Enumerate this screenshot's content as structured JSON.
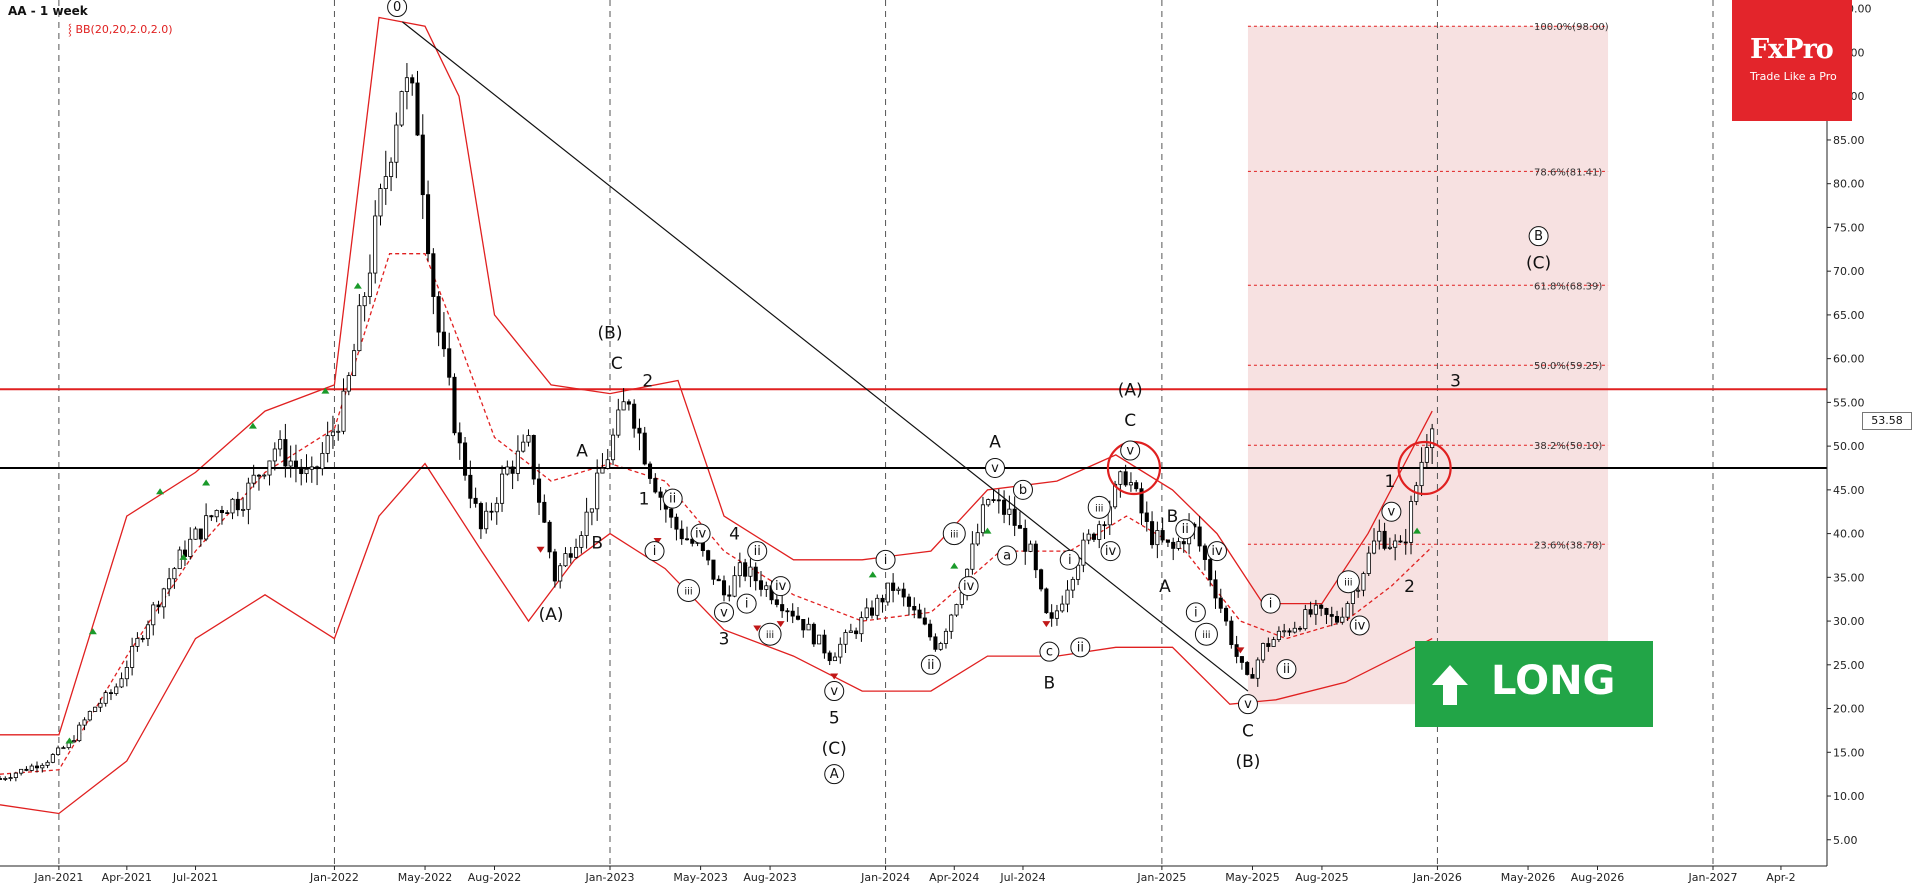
{
  "header": {
    "title": "AA - 1 week",
    "indicator": "BB(20,20,2.0,2.0)"
  },
  "brand": {
    "name": "FxPro",
    "tagline": "Trade Like a Pro"
  },
  "signal": {
    "label": "LONG",
    "direction": "up-arrow-icon"
  },
  "last_price": "53.58",
  "colors": {
    "candle_up": "#ffffff",
    "candle_down": "#000000",
    "bollinger": "#e02020",
    "resistance": "#e02020",
    "support": "#000000",
    "fib_zone": "#f6dcdc",
    "signal": "#22a547",
    "brand": "#e3252b"
  },
  "chart_data": {
    "type": "candlestick",
    "symbol": "AA",
    "timeframe": "1 week",
    "xlim": [
      "2020-10-15",
      "2027-06-01"
    ],
    "ylim": [
      2,
      101
    ],
    "y_ticks": [
      5,
      10,
      15,
      20,
      25,
      30,
      35,
      40,
      45,
      50,
      55,
      60,
      65,
      70,
      75,
      80,
      85,
      90,
      95,
      100
    ],
    "y_tick_labels": [
      "5.00",
      "10.00",
      "15.00",
      "20.00",
      "25.00",
      "30.00",
      "35.00",
      "40.00",
      "45.00",
      "50.00",
      "55.00",
      "60.00",
      "65.00",
      "70.00",
      "75.00",
      "80.00",
      "85.00",
      "90.00",
      "95.00",
      "100.00"
    ],
    "x_ticks": [
      "2021-01-01",
      "2021-04-01",
      "2021-07-01",
      "2022-01-01",
      "2022-05-01",
      "2022-08-01",
      "2023-01-01",
      "2023-05-01",
      "2023-08-01",
      "2024-01-01",
      "2024-04-01",
      "2024-07-01",
      "2025-01-01",
      "2025-05-01",
      "2025-08-01",
      "2026-01-01",
      "2026-05-01",
      "2026-08-01",
      "2027-01-01",
      "2027-04-01"
    ],
    "x_tick_labels": [
      "Jan-2021",
      "Apr-2021",
      "Jul-2021",
      "Jan-2022",
      "May-2022",
      "Aug-2022",
      "Jan-2023",
      "May-2023",
      "Aug-2023",
      "Jan-2024",
      "Apr-2024",
      "Jul-2024",
      "Jan-2025",
      "May-2025",
      "Aug-2025",
      "Jan-2026",
      "May-2026",
      "Aug-2026",
      "Jan-2027",
      "Apr-2"
    ],
    "vertical_gridlines": [
      "2021-01-01",
      "2022-01-01",
      "2023-01-01",
      "2024-01-01",
      "2025-01-01",
      "2026-01-01",
      "2027-01-01"
    ],
    "price_path": [
      [
        "2020-10-15",
        12.0
      ],
      [
        "2020-12-15",
        14.0
      ],
      [
        "2021-01-15",
        16.0
      ],
      [
        "2021-02-15",
        20.0
      ],
      [
        "2021-03-15",
        22.0
      ],
      [
        "2021-05-15",
        33.0
      ],
      [
        "2021-06-15",
        38.0
      ],
      [
        "2021-08-01",
        43.0
      ],
      [
        "2021-09-01",
        44.0
      ],
      [
        "2021-10-15",
        50.0
      ],
      [
        "2021-12-01",
        46.0
      ],
      [
        "2022-01-15",
        55.0
      ],
      [
        "2022-02-15",
        70.0
      ],
      [
        "2022-04-01",
        92.0
      ],
      [
        "2022-04-20",
        88.0
      ],
      [
        "2022-05-15",
        65.0
      ],
      [
        "2022-06-15",
        50.0
      ],
      [
        "2022-07-15",
        40.0
      ],
      [
        "2022-08-15",
        47.0
      ],
      [
        "2022-09-15",
        50.0
      ],
      [
        "2022-10-20",
        35.0
      ],
      [
        "2022-12-01",
        42.0
      ],
      [
        "2022-12-25",
        48.0
      ],
      [
        "2023-01-25",
        56.0
      ],
      [
        "2023-02-20",
        48.0
      ],
      [
        "2023-03-25",
        41.0
      ],
      [
        "2023-05-01",
        38.0
      ],
      [
        "2023-06-01",
        33.0
      ],
      [
        "2023-06-25",
        36.0
      ],
      [
        "2023-07-25",
        34.0
      ],
      [
        "2023-09-01",
        31.0
      ],
      [
        "2023-10-20",
        26.0
      ],
      [
        "2023-12-01",
        30.0
      ],
      [
        "2024-01-10",
        34.0
      ],
      [
        "2024-02-15",
        30.0
      ],
      [
        "2024-03-10",
        27.0
      ],
      [
        "2024-04-15",
        35.0
      ],
      [
        "2024-05-15",
        44.0
      ],
      [
        "2024-06-15",
        42.0
      ],
      [
        "2024-07-10",
        38.0
      ],
      [
        "2024-08-05",
        29.0
      ],
      [
        "2024-09-10",
        37.0
      ],
      [
        "2024-10-15",
        42.0
      ],
      [
        "2024-11-15",
        47.0
      ],
      [
        "2024-12-15",
        40.0
      ],
      [
        "2025-01-15",
        38.0
      ],
      [
        "2025-02-10",
        41.0
      ],
      [
        "2025-03-15",
        33.0
      ],
      [
        "2025-04-10",
        26.0
      ],
      [
        "2025-04-25",
        23.0
      ],
      [
        "2025-05-15",
        27.0
      ],
      [
        "2025-06-15",
        29.0
      ],
      [
        "2025-07-20",
        31.0
      ],
      [
        "2025-08-20",
        30.0
      ],
      [
        "2025-09-15",
        34.0
      ],
      [
        "2025-10-15",
        40.0
      ],
      [
        "2025-11-15",
        38.0
      ],
      [
        "2025-12-10",
        48.0
      ],
      [
        "2025-12-25",
        53.6
      ]
    ],
    "bollinger": {
      "upper": [
        [
          "2020-10-15",
          17.0
        ],
        [
          "2021-01-01",
          17.0
        ],
        [
          "2021-04-01",
          42.0
        ],
        [
          "2021-07-01",
          47.0
        ],
        [
          "2021-10-01",
          54.0
        ],
        [
          "2022-01-01",
          57.0
        ],
        [
          "2022-03-01",
          99.0
        ],
        [
          "2022-05-01",
          98.0
        ],
        [
          "2022-06-15",
          90.0
        ],
        [
          "2022-08-01",
          65.0
        ],
        [
          "2022-10-15",
          57.0
        ],
        [
          "2023-01-01",
          56.0
        ],
        [
          "2023-04-01",
          57.5
        ],
        [
          "2023-06-01",
          42.0
        ],
        [
          "2023-09-01",
          37.0
        ],
        [
          "2023-12-01",
          37.0
        ],
        [
          "2024-03-01",
          38.0
        ],
        [
          "2024-05-15",
          45.0
        ],
        [
          "2024-08-15",
          46.0
        ],
        [
          "2024-11-01",
          49.0
        ],
        [
          "2025-01-15",
          45.0
        ],
        [
          "2025-03-15",
          40.0
        ],
        [
          "2025-05-15",
          32.0
        ],
        [
          "2025-08-01",
          32.0
        ],
        [
          "2025-10-01",
          40.0
        ],
        [
          "2025-12-25",
          54.0
        ]
      ],
      "middle": [
        [
          "2020-10-15",
          12.5
        ],
        [
          "2021-01-01",
          13.0
        ],
        [
          "2021-04-01",
          26.0
        ],
        [
          "2021-07-01",
          38.0
        ],
        [
          "2021-10-01",
          47.0
        ],
        [
          "2022-01-01",
          52.0
        ],
        [
          "2022-03-15",
          72.0
        ],
        [
          "2022-05-01",
          72.0
        ],
        [
          "2022-06-15",
          62.0
        ],
        [
          "2022-08-01",
          51.0
        ],
        [
          "2022-10-15",
          46.0
        ],
        [
          "2023-01-01",
          48.0
        ],
        [
          "2023-03-15",
          46.0
        ],
        [
          "2023-06-01",
          38.0
        ],
        [
          "2023-09-01",
          33.0
        ],
        [
          "2023-12-01",
          30.0
        ],
        [
          "2024-03-01",
          31.0
        ],
        [
          "2024-06-01",
          38.0
        ],
        [
          "2024-09-01",
          38.0
        ],
        [
          "2024-11-15",
          42.0
        ],
        [
          "2025-02-01",
          38.0
        ],
        [
          "2025-04-15",
          30.0
        ],
        [
          "2025-06-15",
          28.0
        ],
        [
          "2025-09-01",
          30.0
        ],
        [
          "2025-11-01",
          34.0
        ],
        [
          "2025-12-25",
          38.5
        ]
      ],
      "lower": [
        [
          "2020-10-15",
          9.0
        ],
        [
          "2021-01-01",
          8.0
        ],
        [
          "2021-04-01",
          14.0
        ],
        [
          "2021-07-01",
          28.0
        ],
        [
          "2021-10-01",
          33.0
        ],
        [
          "2022-01-01",
          28.0
        ],
        [
          "2022-03-01",
          42.0
        ],
        [
          "2022-05-01",
          48.0
        ],
        [
          "2022-07-15",
          38.0
        ],
        [
          "2022-09-15",
          30.0
        ],
        [
          "2022-11-15",
          37.0
        ],
        [
          "2023-01-01",
          40.0
        ],
        [
          "2023-03-15",
          36.0
        ],
        [
          "2023-06-01",
          29.0
        ],
        [
          "2023-09-01",
          26.0
        ],
        [
          "2023-12-01",
          22.0
        ],
        [
          "2024-03-01",
          22.0
        ],
        [
          "2024-05-15",
          26.0
        ],
        [
          "2024-08-15",
          26.0
        ],
        [
          "2024-11-01",
          27.0
        ],
        [
          "2025-01-15",
          27.0
        ],
        [
          "2025-04-01",
          20.5
        ],
        [
          "2025-06-01",
          21.0
        ],
        [
          "2025-09-01",
          23.0
        ],
        [
          "2025-12-25",
          28.0
        ]
      ]
    },
    "horizontal_lines": [
      {
        "price": 56.5,
        "color": "#e02020",
        "role": "resistance"
      },
      {
        "price": 47.5,
        "color": "#000000",
        "role": "support"
      }
    ],
    "trendline": {
      "from": [
        "2022-04-01",
        98.5
      ],
      "to": [
        "2025-04-25",
        22.0
      ]
    },
    "fib_zone": {
      "x_start": "2025-04-25",
      "x_end": "2026-08-15",
      "price_low": 20.5,
      "price_high": 98.0
    },
    "fib_levels": [
      {
        "label": "100.0%(98.00)",
        "price": 98.0
      },
      {
        "label": "78.6%(81.41)",
        "price": 81.41
      },
      {
        "label": "61.8%(68.39)",
        "price": 68.39
      },
      {
        "label": "50.0%(59.25)",
        "price": 59.25
      },
      {
        "label": "38.2%(50.10)",
        "price": 50.1
      },
      {
        "label": "23.6%(38.78)",
        "price": 38.78
      }
    ],
    "wave_labels": [
      {
        "text": "0",
        "x": "2022-03-25",
        "y": 100.2,
        "circled": true
      },
      {
        "text": "(A)",
        "x": "2022-10-15",
        "y": 30.8
      },
      {
        "text": "(B)",
        "x": "2023-01-01",
        "y": 63.0
      },
      {
        "text": "C",
        "x": "2023-01-10",
        "y": 59.5
      },
      {
        "text": "2",
        "x": "2023-02-20",
        "y": 57.5
      },
      {
        "text": "A",
        "x": "2022-11-25",
        "y": 49.5
      },
      {
        "text": "B",
        "x": "2022-12-15",
        "y": 39.0
      },
      {
        "text": "1",
        "x": "2023-02-15",
        "y": 44.0
      },
      {
        "text": "i",
        "x": "2023-03-01",
        "y": 38.0,
        "circled": true
      },
      {
        "text": "ii",
        "x": "2023-03-25",
        "y": 44.0,
        "circled": true
      },
      {
        "text": "iii",
        "x": "2023-04-15",
        "y": 33.5,
        "circled": true
      },
      {
        "text": "iv",
        "x": "2023-05-01",
        "y": 40.0,
        "circled": true
      },
      {
        "text": "v",
        "x": "2023-06-01",
        "y": 31.0,
        "circled": true
      },
      {
        "text": "3",
        "x": "2023-06-01",
        "y": 28.0
      },
      {
        "text": "4",
        "x": "2023-06-15",
        "y": 40.0
      },
      {
        "text": "i",
        "x": "2023-07-01",
        "y": 32.0,
        "circled": true
      },
      {
        "text": "ii",
        "x": "2023-07-15",
        "y": 38.0,
        "circled": true
      },
      {
        "text": "iii",
        "x": "2023-08-01",
        "y": 28.5,
        "circled": true
      },
      {
        "text": "iv",
        "x": "2023-08-15",
        "y": 34.0,
        "circled": true
      },
      {
        "text": "v",
        "x": "2023-10-25",
        "y": 22.0,
        "circled": true
      },
      {
        "text": "5",
        "x": "2023-10-25",
        "y": 19.0
      },
      {
        "text": "(C)",
        "x": "2023-10-25",
        "y": 15.5
      },
      {
        "text": "A",
        "x": "2023-10-25",
        "y": 12.5,
        "circled": true
      },
      {
        "text": "i",
        "x": "2024-01-01",
        "y": 37.0,
        "circled": true
      },
      {
        "text": "ii",
        "x": "2024-03-01",
        "y": 25.0,
        "circled": true
      },
      {
        "text": "iii",
        "x": "2024-04-01",
        "y": 40.0,
        "circled": true
      },
      {
        "text": "iv",
        "x": "2024-04-20",
        "y": 34.0,
        "circled": true
      },
      {
        "text": "v",
        "x": "2024-05-25",
        "y": 47.5,
        "circled": true
      },
      {
        "text": "A",
        "x": "2024-05-25",
        "y": 50.5
      },
      {
        "text": "a",
        "x": "2024-06-10",
        "y": 37.5,
        "circled": true
      },
      {
        "text": "b",
        "x": "2024-07-01",
        "y": 45.0,
        "circled": true
      },
      {
        "text": "c",
        "x": "2024-08-05",
        "y": 26.5,
        "circled": true
      },
      {
        "text": "B",
        "x": "2024-08-05",
        "y": 23.0
      },
      {
        "text": "i",
        "x": "2024-09-01",
        "y": 37.0,
        "circled": true
      },
      {
        "text": "ii",
        "x": "2024-09-15",
        "y": 27.0,
        "circled": true
      },
      {
        "text": "iii",
        "x": "2024-10-10",
        "y": 43.0,
        "circled": true
      },
      {
        "text": "iv",
        "x": "2024-10-25",
        "y": 38.0,
        "circled": true
      },
      {
        "text": "v",
        "x": "2024-11-20",
        "y": 49.5,
        "circled": true
      },
      {
        "text": "C",
        "x": "2024-11-20",
        "y": 53.0
      },
      {
        "text": "(A)",
        "x": "2024-11-20",
        "y": 56.5
      },
      {
        "text": "B",
        "x": "2025-01-15",
        "y": 42.0
      },
      {
        "text": "A",
        "x": "2025-01-05",
        "y": 34.0
      },
      {
        "text": "ii",
        "x": "2025-02-01",
        "y": 40.5,
        "circled": true
      },
      {
        "text": "i",
        "x": "2025-02-15",
        "y": 31.0,
        "circled": true
      },
      {
        "text": "iv",
        "x": "2025-03-15",
        "y": 38.0,
        "circled": true
      },
      {
        "text": "iii",
        "x": "2025-03-01",
        "y": 28.5,
        "circled": true
      },
      {
        "text": "v",
        "x": "2025-04-25",
        "y": 20.5,
        "circled": true
      },
      {
        "text": "C",
        "x": "2025-04-25",
        "y": 17.5
      },
      {
        "text": "(B)",
        "x": "2025-04-25",
        "y": 14.0
      },
      {
        "text": "i",
        "x": "2025-05-25",
        "y": 32.0,
        "circled": true
      },
      {
        "text": "ii",
        "x": "2025-06-15",
        "y": 24.5,
        "circled": true
      },
      {
        "text": "iii",
        "x": "2025-09-05",
        "y": 34.5,
        "circled": true
      },
      {
        "text": "iv",
        "x": "2025-09-20",
        "y": 29.5,
        "circled": true
      },
      {
        "text": "v",
        "x": "2025-11-01",
        "y": 42.5,
        "circled": true
      },
      {
        "text": "1",
        "x": "2025-10-30",
        "y": 46.0
      },
      {
        "text": "2",
        "x": "2025-11-25",
        "y": 34.0
      },
      {
        "text": "3",
        "x": "2026-01-25",
        "y": 57.5
      },
      {
        "text": "B",
        "x": "2026-05-15",
        "y": 74.0,
        "circled": true
      },
      {
        "text": "(C)",
        "x": "2026-05-15",
        "y": 71.0
      }
    ],
    "highlight_circles": [
      {
        "x": "2024-11-25",
        "y": 47.5
      },
      {
        "x": "2025-12-15",
        "y": 47.5
      }
    ],
    "markers_up": [
      [
        "2021-02-15",
        28.5
      ],
      [
        "2021-05-15",
        44.5
      ],
      [
        "2021-07-15",
        45.5
      ],
      [
        "2021-09-15",
        52.0
      ],
      [
        "2021-12-20",
        56.0
      ],
      [
        "2022-02-01",
        68.0
      ],
      [
        "2023-12-15",
        35.0
      ],
      [
        "2024-04-01",
        36.0
      ],
      [
        "2024-05-15",
        40.0
      ],
      [
        "2025-12-05",
        40.0
      ],
      [
        "2021-01-15",
        16.0
      ],
      [
        "2021-06-15",
        37.0
      ]
    ],
    "markers_down": [
      [
        "2022-10-01",
        38.5
      ],
      [
        "2023-03-05",
        39.5
      ],
      [
        "2023-08-15",
        30.0
      ],
      [
        "2023-10-25",
        24.0
      ],
      [
        "2024-08-01",
        30.0
      ],
      [
        "2025-04-15",
        27.0
      ],
      [
        "2023-07-15",
        29.5
      ]
    ]
  }
}
